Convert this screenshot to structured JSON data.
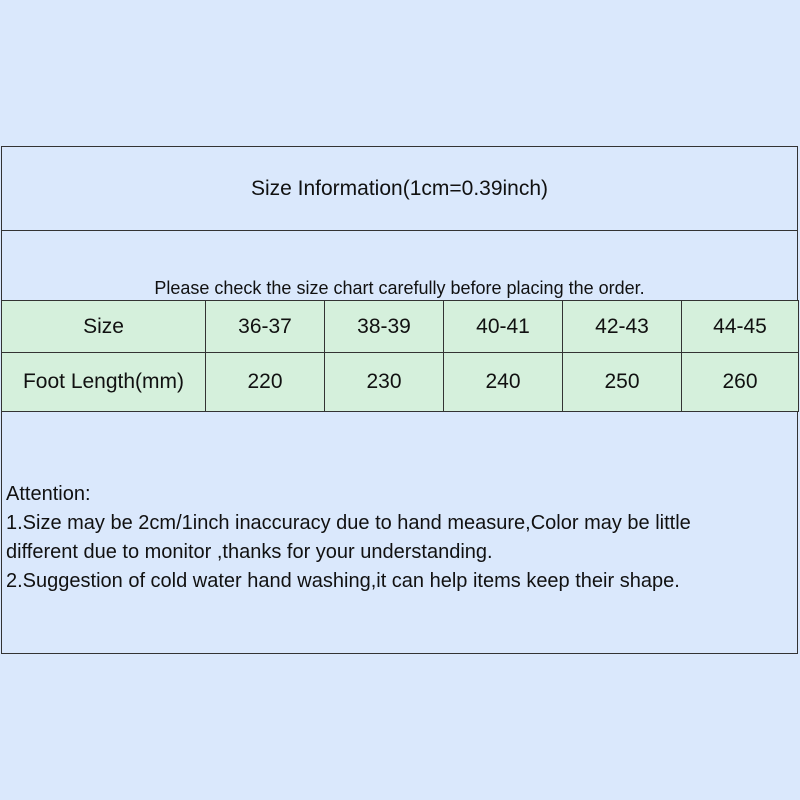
{
  "title": "Size Information(1cm=0.39inch)",
  "note": "Please check the size chart carefully before placing the order.",
  "table": {
    "header": [
      "Size",
      "36-37",
      "38-39",
      "40-41",
      "42-43",
      "44-45"
    ],
    "row": [
      "Foot Length(mm)",
      "220",
      "230",
      "240",
      "250",
      "260"
    ]
  },
  "attention": {
    "heading": "Attention:",
    "lines": [
      "1.Size may be 2cm/1inch inaccuracy due to hand measure,Color may be little",
      "different due to monitor ,thanks for your understanding.",
      "2.Suggestion of cold water hand washing,it can help items keep their shape."
    ]
  },
  "colors": {
    "background": "#dae8fc",
    "table_fill": "#d5f0dc"
  }
}
